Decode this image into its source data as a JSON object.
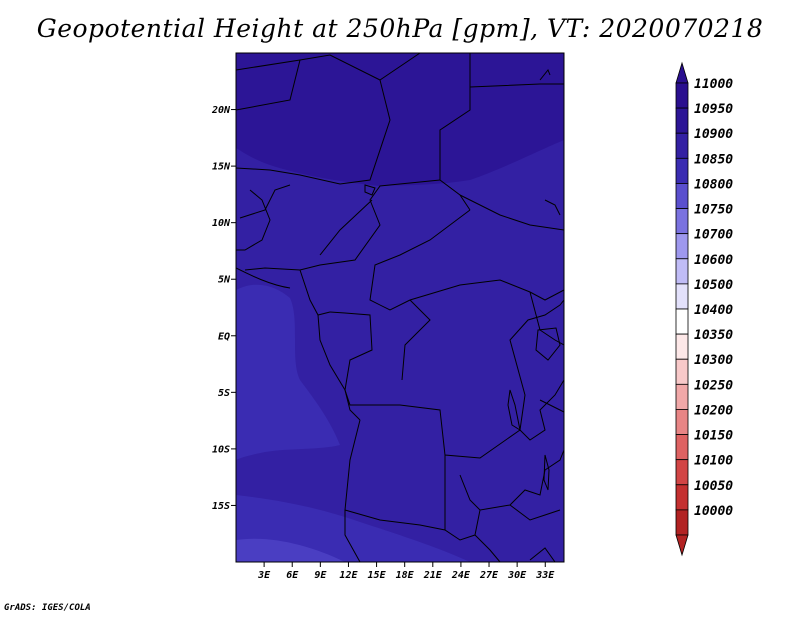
{
  "title": "Geopotential Height at 250hPa [gpm], VT: 2020070218",
  "credit": "GrADS: IGES/COLA",
  "map": {
    "lat_range": [
      -20,
      25
    ],
    "lon_range": [
      0,
      35
    ],
    "lat_ticks": [
      {
        "value": 20,
        "label": "20N"
      },
      {
        "value": 15,
        "label": "15N"
      },
      {
        "value": 10,
        "label": "10N"
      },
      {
        "value": 5,
        "label": "5N"
      },
      {
        "value": 0,
        "label": "EQ"
      },
      {
        "value": -5,
        "label": "5S"
      },
      {
        "value": -10,
        "label": "10S"
      },
      {
        "value": -15,
        "label": "15S"
      }
    ],
    "lon_ticks": [
      {
        "value": 3,
        "label": "3E"
      },
      {
        "value": 6,
        "label": "6E"
      },
      {
        "value": 9,
        "label": "9E"
      },
      {
        "value": 12,
        "label": "12E"
      },
      {
        "value": 15,
        "label": "15E"
      },
      {
        "value": 18,
        "label": "18E"
      },
      {
        "value": 21,
        "label": "21E"
      },
      {
        "value": 24,
        "label": "24E"
      },
      {
        "value": 27,
        "label": "27E"
      },
      {
        "value": 30,
        "label": "30E"
      },
      {
        "value": 33,
        "label": "33E"
      }
    ]
  },
  "colorbar": {
    "levels": [
      {
        "label": "11000",
        "color": "#2a0f8f"
      },
      {
        "label": "10950",
        "color": "#2c1596"
      },
      {
        "label": "10900",
        "color": "#3320a3"
      },
      {
        "label": "10850",
        "color": "#3a2cb2"
      },
      {
        "label": "10800",
        "color": "#5a4fce"
      },
      {
        "label": "10750",
        "color": "#7a72e0"
      },
      {
        "label": "10700",
        "color": "#9e98ee"
      },
      {
        "label": "10600",
        "color": "#c0bcf6"
      },
      {
        "label": "10500",
        "color": "#e3e1fb"
      },
      {
        "label": "10400",
        "color": "#ffffff"
      },
      {
        "label": "10350",
        "color": "#fde8e8"
      },
      {
        "label": "10300",
        "color": "#f8c9c9"
      },
      {
        "label": "10250",
        "color": "#f1a8a8"
      },
      {
        "label": "10200",
        "color": "#e88585"
      },
      {
        "label": "10150",
        "color": "#de6262"
      },
      {
        "label": "10100",
        "color": "#d24545"
      },
      {
        "label": "10050",
        "color": "#c43030"
      },
      {
        "label": "10000",
        "color": "#b22222"
      }
    ],
    "top_arrow_color": "#2a0f8f",
    "bottom_arrow_color": "#b22222"
  },
  "fill_colors": {
    "band_1": "#2a0f8f",
    "band_2": "#2c1596",
    "band_3": "#3320a3",
    "band_4": "#3a2cb2",
    "band_5": "#4a3ec2"
  }
}
